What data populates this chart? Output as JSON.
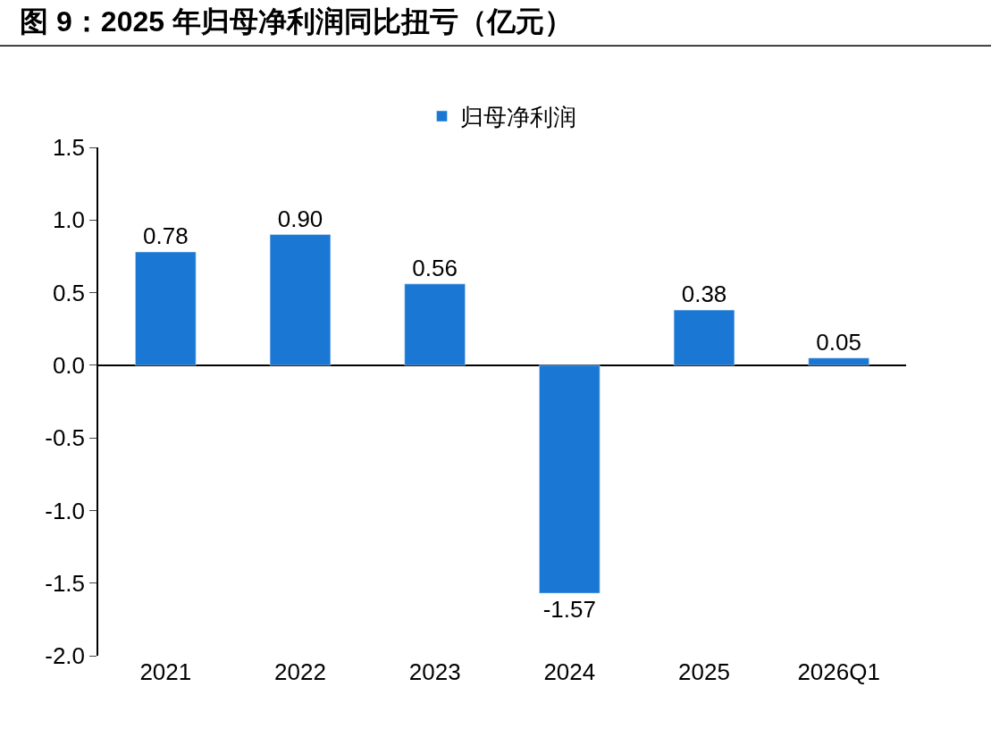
{
  "chart_data": {
    "type": "bar",
    "title": "图 9：2025 年归母净利润同比扭亏（亿元）",
    "categories": [
      "2021",
      "2022",
      "2023",
      "2024",
      "2025",
      "2026Q1"
    ],
    "series": [
      {
        "name": "归母净利润",
        "color": "#1a78d4",
        "values": [
          0.78,
          0.9,
          0.56,
          -1.57,
          0.38,
          0.05
        ]
      }
    ],
    "ylim": [
      -2.0,
      1.5
    ],
    "yticks": [
      1.5,
      {
        "value": 1.0,
        "label": "1.0"
      },
      0.5,
      {
        "value": 0.0,
        "label": "0.0"
      },
      -0.5,
      {
        "value": -1.0,
        "label": "-1.0"
      },
      -1.5,
      {
        "value": -2.0,
        "label": "-2.0"
      }
    ],
    "value_labels": [
      "0.78",
      "0.90",
      "0.56",
      "-1.57",
      "0.38",
      "0.05"
    ],
    "legend": "top"
  }
}
